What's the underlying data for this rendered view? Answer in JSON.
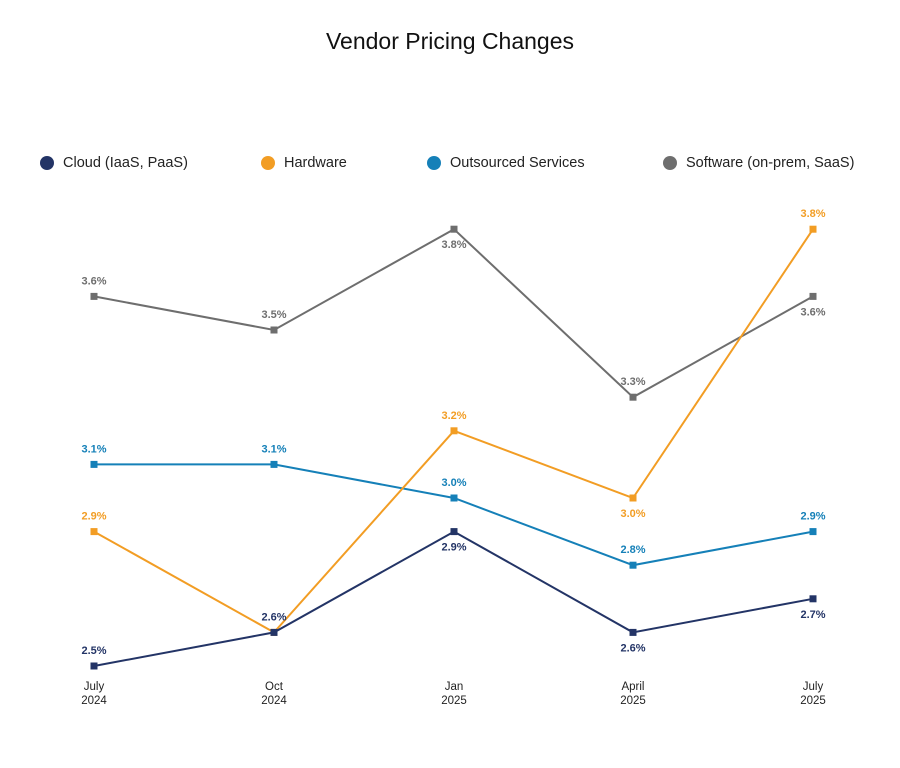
{
  "chart_data": {
    "type": "line",
    "title": "Vendor Pricing Changes",
    "xlabel": "",
    "ylabel": "",
    "grid": false,
    "legend_position": "top",
    "categories": [
      [
        "July",
        "2024"
      ],
      [
        "Oct",
        "2024"
      ],
      [
        "Jan",
        "2025"
      ],
      [
        "April",
        "2025"
      ],
      [
        "July",
        "2025"
      ]
    ],
    "series": [
      {
        "name": "Cloud (IaaS, PaaS)",
        "color": "#233466",
        "values": [
          2.5,
          2.6,
          2.9,
          2.6,
          2.7
        ],
        "labels": [
          "2.5%",
          "2.6%",
          "2.9%",
          "2.6%",
          "2.7%"
        ]
      },
      {
        "name": "Hardware",
        "color": "#F29D24",
        "values": [
          2.9,
          2.6,
          3.2,
          3.0,
          3.8
        ],
        "labels": [
          "2.9%",
          "",
          "3.2%",
          "3.0%",
          "3.8%"
        ]
      },
      {
        "name": "Outsourced Services",
        "color": "#1580B8",
        "values": [
          3.1,
          3.1,
          3.0,
          2.8,
          2.9
        ],
        "labels": [
          "3.1%",
          "3.1%",
          "3.0%",
          "2.8%",
          "2.9%"
        ]
      },
      {
        "name": "Software (on-prem, SaaS)",
        "color": "#6E6E6E",
        "values": [
          3.6,
          3.5,
          3.8,
          3.3,
          3.6
        ],
        "labels": [
          "3.6%",
          "3.5%",
          "3.8%",
          "3.3%",
          "3.6%"
        ]
      }
    ]
  }
}
